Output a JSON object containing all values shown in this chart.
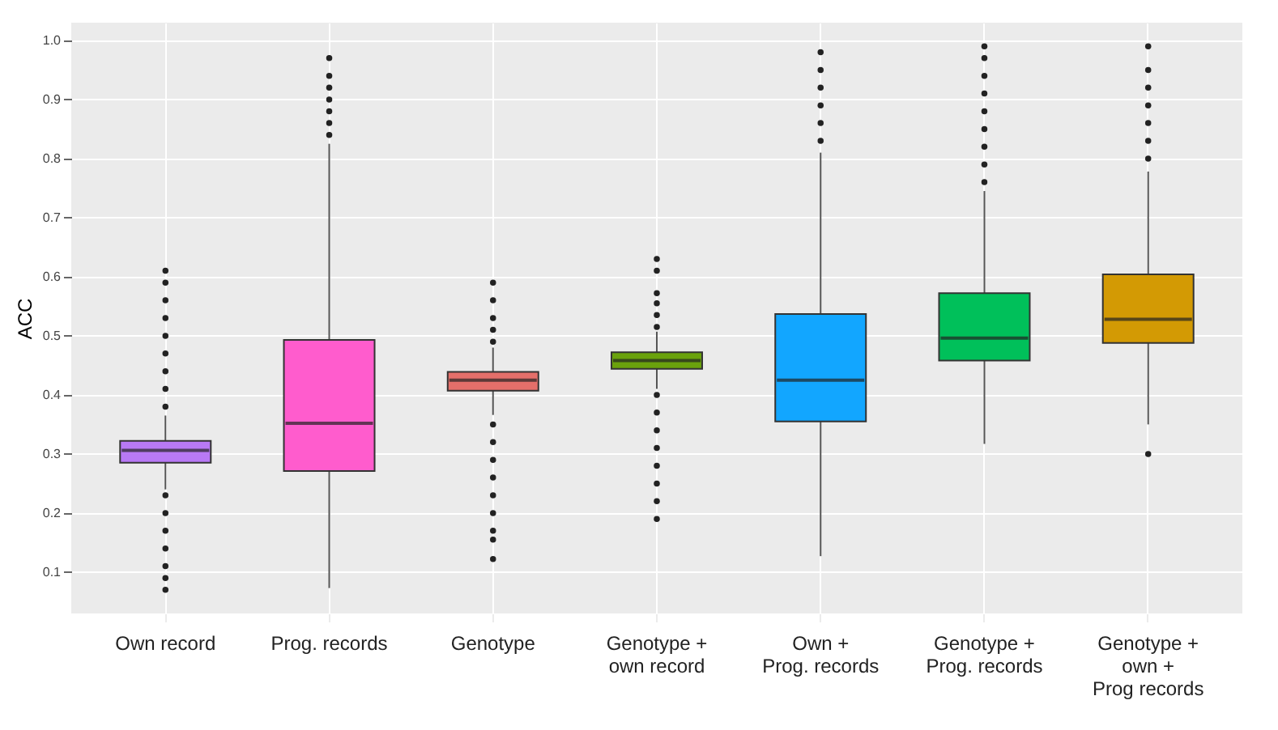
{
  "chart_data": {
    "type": "box",
    "ylabel": "ACC",
    "categories": [
      "Own record",
      "Prog. records",
      "Genotype",
      "Genotype + own record",
      "Own + Prog. records",
      "Genotype + Prog. records",
      "Genotype + own + Prog records"
    ],
    "colors": [
      "#b879f5",
      "#ff5ccd",
      "#e46f6a",
      "#6aa20c",
      "#12a6ff",
      "#00c05a",
      "#d39a04"
    ],
    "boxes": [
      {
        "low": 0.24,
        "q1": 0.285,
        "median": 0.306,
        "q3": 0.322,
        "high": 0.365,
        "outliers": [
          0.38,
          0.41,
          0.44,
          0.47,
          0.5,
          0.53,
          0.56,
          0.59,
          0.61,
          0.23,
          0.2,
          0.17,
          0.14,
          0.11,
          0.09,
          0.07
        ]
      },
      {
        "low": 0.073,
        "q1": 0.271,
        "median": 0.352,
        "q3": 0.493,
        "high": 0.825,
        "outliers": [
          0.84,
          0.86,
          0.88,
          0.9,
          0.92,
          0.94,
          0.97
        ]
      },
      {
        "low": 0.366,
        "q1": 0.407,
        "median": 0.425,
        "q3": 0.439,
        "high": 0.48,
        "outliers": [
          0.49,
          0.51,
          0.53,
          0.56,
          0.59,
          0.35,
          0.32,
          0.29,
          0.26,
          0.23,
          0.2,
          0.17,
          0.155,
          0.122
        ]
      },
      {
        "low": 0.41,
        "q1": 0.444,
        "median": 0.458,
        "q3": 0.472,
        "high": 0.507,
        "outliers": [
          0.515,
          0.535,
          0.555,
          0.572,
          0.61,
          0.63,
          0.4,
          0.37,
          0.34,
          0.31,
          0.28,
          0.25,
          0.22,
          0.19
        ]
      },
      {
        "low": 0.127,
        "q1": 0.355,
        "median": 0.425,
        "q3": 0.537,
        "high": 0.81,
        "outliers": [
          0.83,
          0.86,
          0.89,
          0.92,
          0.95,
          0.98
        ]
      },
      {
        "low": 0.317,
        "q1": 0.458,
        "median": 0.496,
        "q3": 0.572,
        "high": 0.745,
        "outliers": [
          0.76,
          0.79,
          0.82,
          0.85,
          0.88,
          0.91,
          0.94,
          0.97,
          0.99
        ]
      },
      {
        "low": 0.35,
        "q1": 0.488,
        "median": 0.528,
        "q3": 0.604,
        "high": 0.778,
        "outliers": [
          0.3,
          0.8,
          0.83,
          0.86,
          0.89,
          0.92,
          0.95,
          0.99
        ]
      }
    ],
    "ylim": [
      0.03,
      1.03
    ],
    "yticks": [
      0.1,
      0.2,
      0.3,
      0.4,
      0.5,
      0.6,
      0.7,
      0.8,
      0.9,
      {
        "value": 1.0,
        "label": "1.0"
      }
    ],
    "grid": true
  }
}
